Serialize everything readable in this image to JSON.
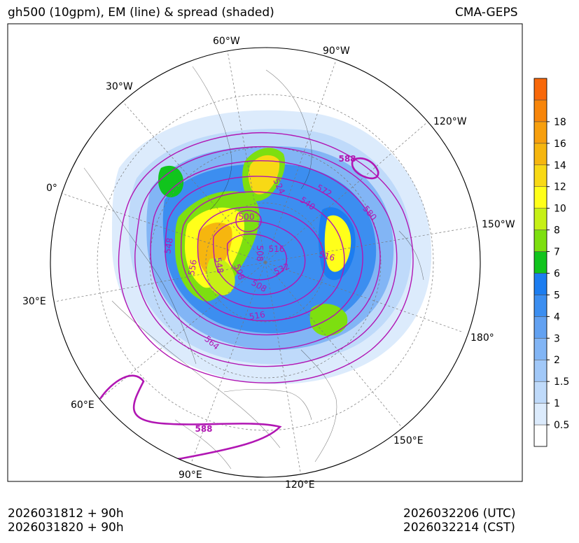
{
  "header": {
    "title_left": "gh500 (10gpm), EM (line) & spread (shaded)",
    "title_right": "CMA-GEPS"
  },
  "footer": {
    "init_utc": "2026031812 + 90h",
    "init_cst": "2026031820 + 90h",
    "valid_utc": "2026032206 (UTC)",
    "valid_cst": "2026032214 (CST)"
  },
  "chart_data": {
    "type": "contour",
    "projection": "north polar stereographic",
    "title": "gh500 (10gpm), EM (line) & spread (shaded)",
    "source": "CMA-GEPS",
    "meridian_labels": [
      "60°W",
      "90°W",
      "30°W",
      "120°W",
      "0°",
      "150°W",
      "30°E",
      "180°",
      "60°E",
      "150°E",
      "90°E",
      "120°E"
    ],
    "contour_levels_shown": [
      "500",
      "508",
      "516",
      "524",
      "532",
      "540",
      "548",
      "556",
      "564",
      "572",
      "580",
      "588"
    ],
    "contour_labels": [
      {
        "text": "588",
        "bold": true
      },
      {
        "text": "524"
      },
      {
        "text": "572"
      },
      {
        "text": "540"
      },
      {
        "text": "580"
      },
      {
        "text": "500"
      },
      {
        "text": "548"
      },
      {
        "text": "516"
      },
      {
        "text": "508"
      },
      {
        "text": "516"
      },
      {
        "text": "556"
      },
      {
        "text": "548"
      },
      {
        "text": "532"
      },
      {
        "text": "508"
      },
      {
        "text": "508"
      },
      {
        "text": "516"
      },
      {
        "text": "564"
      },
      {
        "text": "588",
        "bold": true
      }
    ],
    "colorbar": {
      "ticks": [
        "0.5",
        "1",
        "1.5",
        "2",
        "3",
        "4",
        "5",
        "6",
        "7",
        "8",
        "10",
        "12",
        "14",
        "16",
        "18"
      ],
      "colors": [
        "#ffffff",
        "#dcebfc",
        "#bfdafa",
        "#a1c8f8",
        "#82b5f5",
        "#62a1f1",
        "#3c8ef0",
        "#1c7df0",
        "#11c41d",
        "#7ddf10",
        "#c6f016",
        "#ffff1a",
        "#f8d915",
        "#f6b60f",
        "#f79f0e",
        "#f7850a",
        "#f8680a"
      ]
    }
  }
}
